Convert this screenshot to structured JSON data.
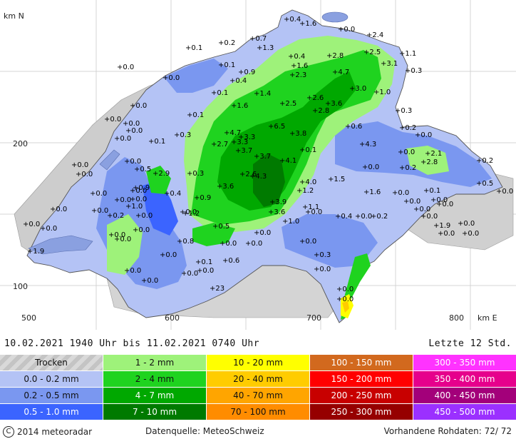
{
  "map": {
    "axis_north_label": "km N",
    "axis_east_label": "km E",
    "y_ticks": [
      "200",
      "100"
    ],
    "x_ticks": [
      "500",
      "600",
      "700",
      "800"
    ],
    "stations": [
      {
        "label": "+0.4"
      },
      {
        "label": "+1.6"
      },
      {
        "label": "+0.0"
      },
      {
        "label": "+2.4"
      },
      {
        "label": "+0.2"
      },
      {
        "label": "+0.7"
      },
      {
        "label": "+0.1"
      },
      {
        "label": "+1.3"
      },
      {
        "label": "+0.4"
      },
      {
        "label": "+2.8"
      },
      {
        "label": "+2.5"
      },
      {
        "label": "+1.1"
      },
      {
        "label": "+0.0"
      },
      {
        "label": "+0.1"
      },
      {
        "label": "+0.9"
      },
      {
        "label": "+1.6"
      },
      {
        "label": "+2.3"
      },
      {
        "label": "+4.7"
      },
      {
        "label": "+3.1"
      },
      {
        "label": "+0.3"
      },
      {
        "label": "+0.0"
      },
      {
        "label": "+0.4"
      },
      {
        "label": "+3.0"
      },
      {
        "label": "+1.0"
      },
      {
        "label": "+0.1"
      },
      {
        "label": "+1.4"
      },
      {
        "label": "+2.6"
      },
      {
        "label": "+2.5"
      },
      {
        "label": "+3.6"
      },
      {
        "label": "+0.0"
      },
      {
        "label": "+1.6"
      },
      {
        "label": "+2.8"
      },
      {
        "label": "+0.3"
      },
      {
        "label": "+0.0"
      },
      {
        "label": "+0.1"
      },
      {
        "label": "+6.5"
      },
      {
        "label": "+0.6"
      },
      {
        "label": "+0.2"
      },
      {
        "label": "+0.0"
      },
      {
        "label": "+0.0"
      },
      {
        "label": "+4.7"
      },
      {
        "label": "+3.3"
      },
      {
        "label": "+3.8"
      },
      {
        "label": "+0.0"
      },
      {
        "label": "+0.0"
      },
      {
        "label": "+0.3"
      },
      {
        "label": "+2.7"
      },
      {
        "label": "+3.3"
      },
      {
        "label": "+4.3"
      },
      {
        "label": "+0.1"
      },
      {
        "label": "+3.7"
      },
      {
        "label": "+0.1"
      },
      {
        "label": "+0.0"
      },
      {
        "label": "+2.1"
      },
      {
        "label": "+3.7"
      },
      {
        "label": "+4.1"
      },
      {
        "label": "+0.0"
      },
      {
        "label": "+0.2"
      },
      {
        "label": "+2.8"
      },
      {
        "label": "+0.2"
      },
      {
        "label": "+0.0"
      },
      {
        "label": "+0.5"
      },
      {
        "label": "+2.9"
      },
      {
        "label": "+0.3"
      },
      {
        "label": "+2.6"
      },
      {
        "label": "+4.3"
      },
      {
        "label": "+4.0"
      },
      {
        "label": "+1.5"
      },
      {
        "label": "+0.0"
      },
      {
        "label": "+0.0"
      },
      {
        "label": "+0.5"
      },
      {
        "label": "+0.0"
      },
      {
        "label": "+3.6"
      },
      {
        "label": "+1.2"
      },
      {
        "label": "+1.6"
      },
      {
        "label": "+0.0"
      },
      {
        "label": "+0.1"
      },
      {
        "label": "+0.0"
      },
      {
        "label": "+0.9"
      },
      {
        "label": "+0.4"
      },
      {
        "label": "+0.9"
      },
      {
        "label": "+3.9"
      },
      {
        "label": "+1.1"
      },
      {
        "label": "+0.0"
      },
      {
        "label": "+0.0"
      },
      {
        "label": "+0.0"
      },
      {
        "label": "+0.0"
      },
      {
        "label": "+1.0"
      },
      {
        "label": "+3.6"
      },
      {
        "label": "+0.0"
      },
      {
        "label": "+0.0"
      },
      {
        "label": "+0.0"
      },
      {
        "label": "+0.0"
      },
      {
        "label": "+0.0"
      },
      {
        "label": "+0.2"
      },
      {
        "label": "+1.2"
      },
      {
        "label": "+0.0"
      },
      {
        "label": "+0.0"
      },
      {
        "label": "+0.0"
      },
      {
        "label": "+0.0"
      },
      {
        "label": "+0.0"
      },
      {
        "label": "+0.4"
      },
      {
        "label": "+0.0"
      },
      {
        "label": "+0.2"
      },
      {
        "label": "+0.0"
      },
      {
        "label": "+1.0"
      },
      {
        "label": "+1.9"
      },
      {
        "label": "+0.0"
      },
      {
        "label": "+0.0"
      },
      {
        "label": "+0.0"
      },
      {
        "label": "+0.5"
      },
      {
        "label": "+0.0"
      },
      {
        "label": "+0.0"
      },
      {
        "label": "+0.0"
      },
      {
        "label": "+0.0"
      },
      {
        "label": "+0.8"
      },
      {
        "label": "+0.0"
      },
      {
        "label": "+0.0"
      },
      {
        "label": "+0.0"
      },
      {
        "label": "+0.3"
      },
      {
        "label": "+1.9"
      },
      {
        "label": "+0.0"
      },
      {
        "label": "+0.1"
      },
      {
        "label": "+0.6"
      },
      {
        "label": "+0.0"
      },
      {
        "label": "+0.0"
      },
      {
        "label": "+0.0"
      },
      {
        "label": "+0.0"
      },
      {
        "label": "+0.0"
      },
      {
        "label": "+23"
      },
      {
        "label": "+0.0"
      },
      {
        "label": "+0.0"
      }
    ]
  },
  "info": {
    "time_range": "10.02.2021  1940 Uhr   bis   11.02.2021  0740 Uhr",
    "period": "Letzte 12 Std."
  },
  "legend": [
    [
      {
        "label": "Trocken",
        "color": "#cfcfcf"
      },
      {
        "label": "1 - 2 mm",
        "color": "#9ef27a"
      },
      {
        "label": "10 - 20 mm",
        "color": "#ffff00"
      },
      {
        "label": "100 - 150 mm",
        "color": "#d2691e"
      },
      {
        "label": "300 - 350 mm",
        "color": "#ff33ff"
      }
    ],
    [
      {
        "label": "0.0 - 0.2 mm",
        "color": "#b4c3f5"
      },
      {
        "label": "2 - 4 mm",
        "color": "#1fd31f"
      },
      {
        "label": "20 - 40 mm",
        "color": "#ffcc00"
      },
      {
        "label": "150 - 200 mm",
        "color": "#ff0000"
      },
      {
        "label": "350 - 400 mm",
        "color": "#e6008c"
      }
    ],
    [
      {
        "label": "0.2 - 0.5 mm",
        "color": "#7a97f0"
      },
      {
        "label": "4 - 7 mm",
        "color": "#00a800"
      },
      {
        "label": "40 - 70 mm",
        "color": "#ffa500"
      },
      {
        "label": "200 - 250 mm",
        "color": "#c80000"
      },
      {
        "label": "400 - 450 mm",
        "color": "#a3007a"
      }
    ],
    [
      {
        "label": "0.5 - 1.0 mm",
        "color": "#3b64ff"
      },
      {
        "label": "7 - 10 mm",
        "color": "#007a00"
      },
      {
        "label": "70 - 100 mm",
        "color": "#ff8c00"
      },
      {
        "label": "250 - 300 mm",
        "color": "#960000"
      },
      {
        "label": "450 - 500 mm",
        "color": "#9b30ff"
      }
    ]
  ],
  "footer": {
    "copyright_symbol": "C",
    "copyright": "2014  meteoradar",
    "source": "Datenquelle: MeteoSchweiz",
    "raw_data": "Vorhandene Rohdaten:  72/ 72"
  }
}
